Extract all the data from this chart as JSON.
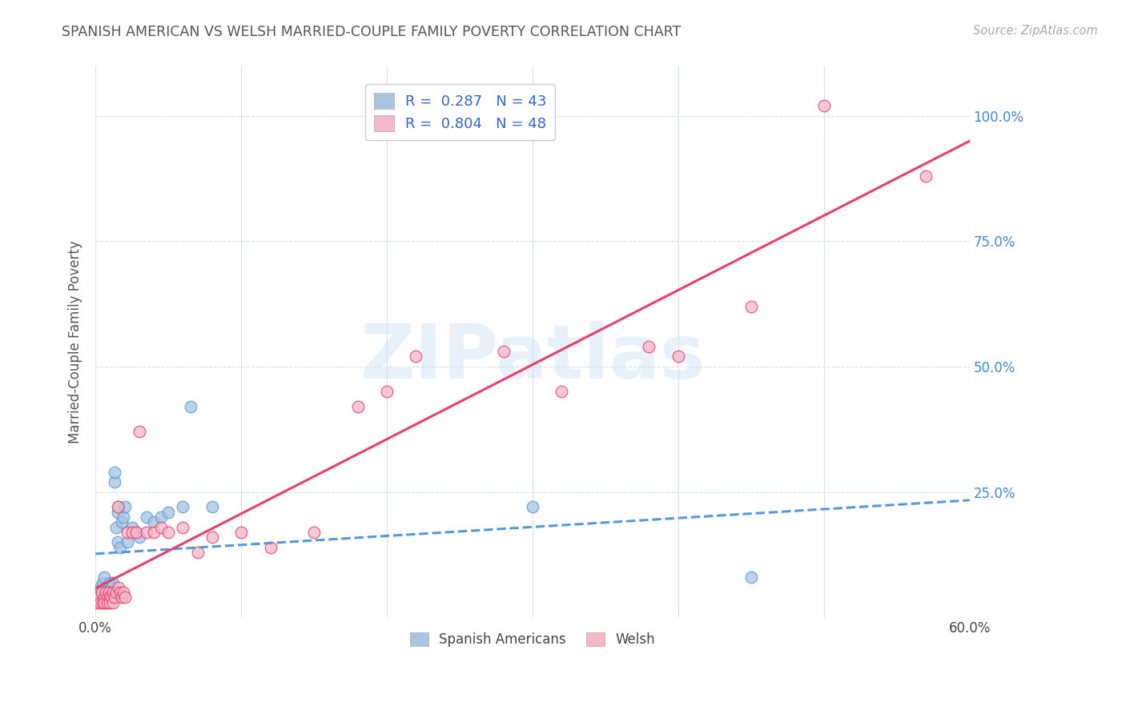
{
  "title": "SPANISH AMERICAN VS WELSH MARRIED-COUPLE FAMILY POVERTY CORRELATION CHART",
  "source": "Source: ZipAtlas.com",
  "ylabel": "Married-Couple Family Poverty",
  "xlim": [
    0.0,
    0.6
  ],
  "ylim": [
    0.0,
    1.1
  ],
  "spanish_R": 0.287,
  "spanish_N": 43,
  "welsh_R": 0.804,
  "welsh_N": 48,
  "spanish_color": "#a8c4e0",
  "welsh_color": "#f4b8c8",
  "spanish_line_color": "#5599dd",
  "welsh_line_color": "#e8406a",
  "background_color": "#ffffff",
  "grid_color": "#d8e0ec",
  "watermark": "ZIPatlas",
  "title_color": "#555555",
  "source_color": "#aaaaaa",
  "right_axis_color": "#4488cc",
  "spanish_points_x": [
    0.001,
    0.002,
    0.003,
    0.004,
    0.005,
    0.005,
    0.006,
    0.006,
    0.007,
    0.007,
    0.008,
    0.008,
    0.009,
    0.009,
    0.01,
    0.01,
    0.011,
    0.011,
    0.012,
    0.012,
    0.013,
    0.013,
    0.014,
    0.015,
    0.015,
    0.016,
    0.017,
    0.018,
    0.019,
    0.02,
    0.022,
    0.025,
    0.028,
    0.03,
    0.035,
    0.04,
    0.045,
    0.05,
    0.06,
    0.065,
    0.08,
    0.45,
    0.3
  ],
  "spanish_points_y": [
    0.05,
    0.04,
    0.06,
    0.04,
    0.03,
    0.07,
    0.05,
    0.08,
    0.04,
    0.06,
    0.05,
    0.03,
    0.06,
    0.04,
    0.07,
    0.05,
    0.04,
    0.06,
    0.05,
    0.07,
    0.27,
    0.29,
    0.18,
    0.15,
    0.21,
    0.22,
    0.14,
    0.19,
    0.2,
    0.22,
    0.15,
    0.18,
    0.17,
    0.16,
    0.2,
    0.19,
    0.2,
    0.21,
    0.22,
    0.42,
    0.22,
    0.08,
    0.22
  ],
  "welsh_points_x": [
    0.001,
    0.002,
    0.003,
    0.004,
    0.005,
    0.006,
    0.006,
    0.007,
    0.008,
    0.008,
    0.009,
    0.01,
    0.01,
    0.011,
    0.012,
    0.012,
    0.013,
    0.014,
    0.015,
    0.016,
    0.017,
    0.018,
    0.019,
    0.02,
    0.022,
    0.025,
    0.028,
    0.03,
    0.035,
    0.04,
    0.045,
    0.05,
    0.06,
    0.07,
    0.08,
    0.1,
    0.12,
    0.15,
    0.18,
    0.2,
    0.22,
    0.28,
    0.32,
    0.38,
    0.4,
    0.45,
    0.5,
    0.57
  ],
  "welsh_points_y": [
    0.03,
    0.04,
    0.03,
    0.05,
    0.03,
    0.04,
    0.03,
    0.05,
    0.04,
    0.03,
    0.05,
    0.04,
    0.03,
    0.04,
    0.05,
    0.03,
    0.04,
    0.05,
    0.22,
    0.06,
    0.05,
    0.04,
    0.05,
    0.04,
    0.17,
    0.17,
    0.17,
    0.37,
    0.17,
    0.17,
    0.18,
    0.17,
    0.18,
    0.13,
    0.16,
    0.17,
    0.14,
    0.17,
    0.42,
    0.45,
    0.52,
    0.53,
    0.45,
    0.54,
    0.52,
    0.62,
    1.02,
    0.88
  ]
}
